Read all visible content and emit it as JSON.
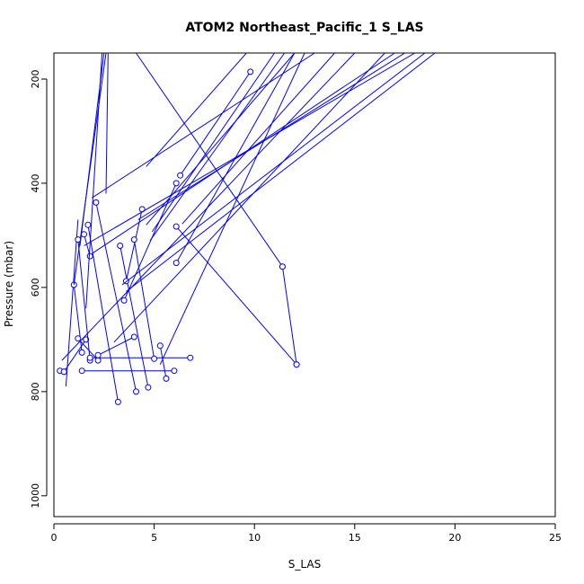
{
  "chart_data": {
    "type": "line",
    "title": "ATOM2 Northeast_Pacific_1 S_LAS",
    "xlabel": "S_LAS",
    "ylabel": "Pressure (mbar)",
    "xlim": [
      0,
      25
    ],
    "ylim": [
      1040,
      150
    ],
    "y_reversed": true,
    "grid": false,
    "legend": "none",
    "color": "#0000ff",
    "x_ticks": [
      0,
      5,
      10,
      15,
      20,
      25
    ],
    "y_ticks": [
      200,
      400,
      600,
      800,
      1000
    ],
    "series": [
      {
        "x": [
          0.3,
          0.5
        ],
        "y": [
          760,
          762
        ],
        "marker": true
      },
      {
        "x": [
          0.5,
          1.6
        ],
        "y": [
          762,
          700
        ],
        "marker": true
      },
      {
        "x": [
          0.6,
          1.2
        ],
        "y": [
          790,
          470
        ],
        "marker": false
      },
      {
        "x": [
          1.0,
          1.4
        ],
        "y": [
          595,
          725
        ],
        "marker": true
      },
      {
        "x": [
          1.0,
          2.6
        ],
        "y": [
          595,
          150
        ],
        "marker": false
      },
      {
        "x": [
          1.2,
          2.2
        ],
        "y": [
          698,
          740
        ],
        "marker": true
      },
      {
        "x": [
          1.2,
          1.8
        ],
        "y": [
          508,
          740
        ],
        "marker": true
      },
      {
        "x": [
          1.3,
          2.5
        ],
        "y": [
          520,
          150
        ],
        "marker": false
      },
      {
        "x": [
          1.5,
          1.8
        ],
        "y": [
          498,
          540
        ],
        "marker": true
      },
      {
        "x": [
          1.6,
          2.4
        ],
        "y": [
          640,
          150
        ],
        "marker": false
      },
      {
        "x": [
          1.7,
          3.2
        ],
        "y": [
          480,
          820
        ],
        "marker": true
      },
      {
        "x": [
          1.9,
          13.0
        ],
        "y": [
          428,
          150
        ],
        "marker": false
      },
      {
        "x": [
          2.1,
          4.1
        ],
        "y": [
          437,
          800
        ],
        "marker": true
      },
      {
        "x": [
          2.6,
          2.7
        ],
        "y": [
          420,
          150
        ],
        "marker": false
      },
      {
        "x": [
          0.4,
          15.0
        ],
        "y": [
          740,
          150
        ],
        "marker": false
      },
      {
        "x": [
          1.8,
          6.8
        ],
        "y": [
          735,
          735
        ],
        "marker": true
      },
      {
        "x": [
          2.2,
          4.0
        ],
        "y": [
          730,
          695
        ],
        "marker": true
      },
      {
        "x": [
          3.3,
          4.7
        ],
        "y": [
          520,
          792
        ],
        "marker": true
      },
      {
        "x": [
          3.5,
          6.1
        ],
        "y": [
          625,
          400
        ],
        "marker": true
      },
      {
        "x": [
          3.6,
          4.4
        ],
        "y": [
          588,
          450
        ],
        "marker": true
      },
      {
        "x": [
          4.0,
          5.0
        ],
        "y": [
          508,
          737
        ],
        "marker": true
      },
      {
        "x": [
          4.6,
          9.6
        ],
        "y": [
          368,
          150
        ],
        "marker": false
      },
      {
        "x": [
          5.3,
          5.6
        ],
        "y": [
          712,
          775
        ],
        "marker": true
      },
      {
        "x": [
          5.3,
          12.5
        ],
        "y": [
          748,
          150
        ],
        "marker": false
      },
      {
        "x": [
          6.1,
          12.1
        ],
        "y": [
          483,
          748
        ],
        "marker": true
      },
      {
        "x": [
          6.1,
          12.0
        ],
        "y": [
          553,
          150
        ],
        "marker": true
      },
      {
        "x": [
          6.3,
          9.8
        ],
        "y": [
          385,
          186
        ],
        "marker": true
      },
      {
        "x": [
          6.4,
          14.0
        ],
        "y": [
          478,
          150
        ],
        "marker": false
      },
      {
        "x": [
          4.1,
          11.4
        ],
        "y": [
          150,
          560
        ],
        "marker": true
      },
      {
        "x": [
          11.4,
          12.1
        ],
        "y": [
          560,
          748
        ],
        "marker": true
      },
      {
        "x": [
          1.5,
          18.0
        ],
        "y": [
          520,
          150
        ],
        "marker": false
      },
      {
        "x": [
          1.9,
          17.0
        ],
        "y": [
          535,
          150
        ],
        "marker": false
      },
      {
        "x": [
          3.0,
          16.5
        ],
        "y": [
          705,
          150
        ],
        "marker": false
      },
      {
        "x": [
          3.4,
          18.5
        ],
        "y": [
          595,
          150
        ],
        "marker": false
      },
      {
        "x": [
          3.6,
          19.0
        ],
        "y": [
          608,
          150
        ],
        "marker": false
      },
      {
        "x": [
          4.2,
          17.5
        ],
        "y": [
          470,
          150
        ],
        "marker": false
      },
      {
        "x": [
          4.8,
          11.5
        ],
        "y": [
          510,
          150
        ],
        "marker": false
      },
      {
        "x": [
          4.6,
          12.0
        ],
        "y": [
          480,
          150
        ],
        "marker": false
      },
      {
        "x": [
          4.9,
          11.0
        ],
        "y": [
          493,
          150
        ],
        "marker": false
      },
      {
        "x": [
          1.4,
          6.0
        ],
        "y": [
          760,
          760
        ],
        "marker": true
      }
    ]
  }
}
